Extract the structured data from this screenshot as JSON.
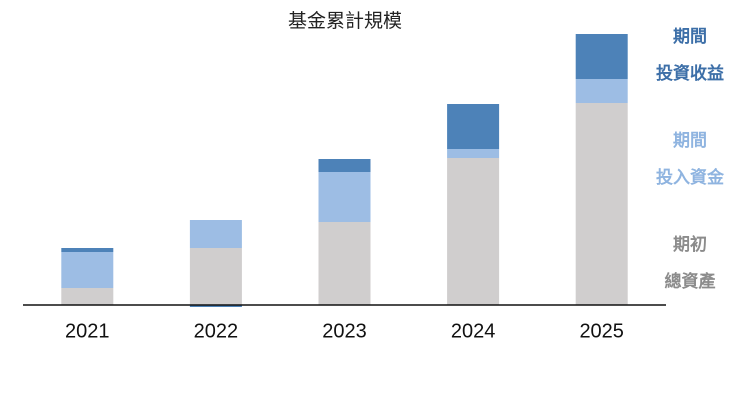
{
  "chart_data": {
    "type": "stacked-bar",
    "title": "基金累計規模",
    "categories": [
      "2021",
      "2022",
      "2023",
      "2024",
      "2025"
    ],
    "series": [
      {
        "name": "期初\n總資產",
        "color": "#d0cece",
        "values": [
          17,
          57,
          83,
          147,
          202
        ]
      },
      {
        "name": "期間\n投入資金",
        "color": "#9dbde4",
        "values": [
          36,
          28,
          50,
          9,
          24
        ]
      },
      {
        "name": "期間\n投資收益",
        "color": "#4d82b8",
        "values": [
          4,
          -2,
          13,
          45,
          45
        ]
      }
    ],
    "ylim": [
      0,
      280
    ]
  }
}
